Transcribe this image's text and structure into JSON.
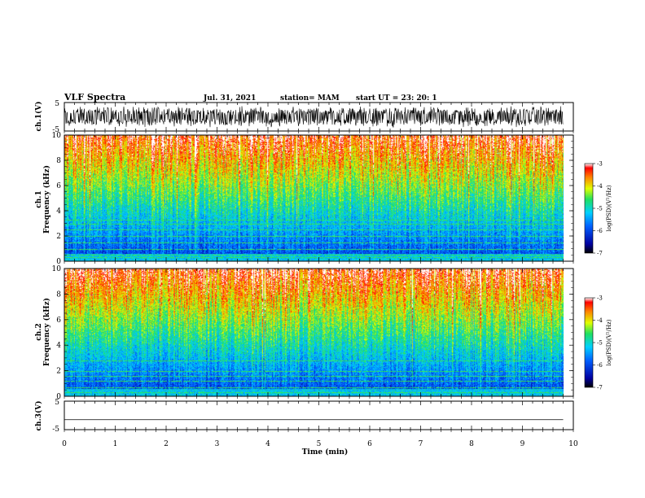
{
  "header": {
    "title": "VLF Spectra",
    "date": "Jul. 31, 2021",
    "station": "station= MAM",
    "start": "start UT = 23: 20: 1"
  },
  "colors": {
    "spectrum_low": "#0000b0",
    "spectrum_mid": "#20d060",
    "spectrum_high": "#ff1010",
    "waveform": "#000000"
  },
  "chart_data": [
    {
      "type": "line",
      "name": "ch1-waveform",
      "ylabel": "ch.1(V)",
      "ylim": [
        -5,
        5
      ],
      "yticks": [
        "5",
        "-5"
      ],
      "xlim": [
        0,
        10
      ],
      "x_end": 9.8,
      "amplitude_typical": 3.5
    },
    {
      "type": "heatmap",
      "name": "ch1-spectrogram",
      "ylabel": "ch.1\nFrequency (kHz)",
      "ylim": [
        0,
        10
      ],
      "yticks": [
        "0",
        "2",
        "4",
        "6",
        "8",
        "10"
      ],
      "xlim": [
        0,
        10
      ],
      "x_end": 9.8,
      "clim": [
        -7,
        -3
      ],
      "colorbar_label": "log(PSD)(V²/Hz)",
      "colorbar_ticks": [
        "-3",
        "-4",
        "-5",
        "-6",
        "-7"
      ],
      "horizontal_lines_khz": [
        0.3,
        0.5,
        1.0,
        1.5,
        2.0,
        2.5,
        3.0,
        3.3
      ]
    },
    {
      "type": "heatmap",
      "name": "ch2-spectrogram",
      "ylabel": "ch.2\nFrequency (kHz)",
      "ylim": [
        0,
        10
      ],
      "yticks": [
        "0",
        "2",
        "4",
        "6",
        "8",
        "10"
      ],
      "xlim": [
        0,
        10
      ],
      "x_end": 9.8,
      "clim": [
        -7,
        -3
      ],
      "colorbar_label": "log(PSD)(V²/Hz)",
      "colorbar_ticks": [
        "-3",
        "-4",
        "-5",
        "-6",
        "-7"
      ],
      "horizontal_lines_khz": [
        0.3,
        0.7,
        1.2,
        1.6,
        2.0,
        2.8
      ]
    },
    {
      "type": "line",
      "name": "ch3-waveform",
      "ylabel": "ch.3(V)",
      "ylim": [
        -5,
        5
      ],
      "yticks": [
        "5",
        "-5"
      ],
      "xlim": [
        0,
        10
      ],
      "x_end": 9.8,
      "constant_value": -1.5
    }
  ],
  "xaxis": {
    "label": "Time (min)",
    "ticks": [
      "0",
      "1",
      "2",
      "3",
      "4",
      "5",
      "6",
      "7",
      "8",
      "9",
      "10"
    ]
  }
}
